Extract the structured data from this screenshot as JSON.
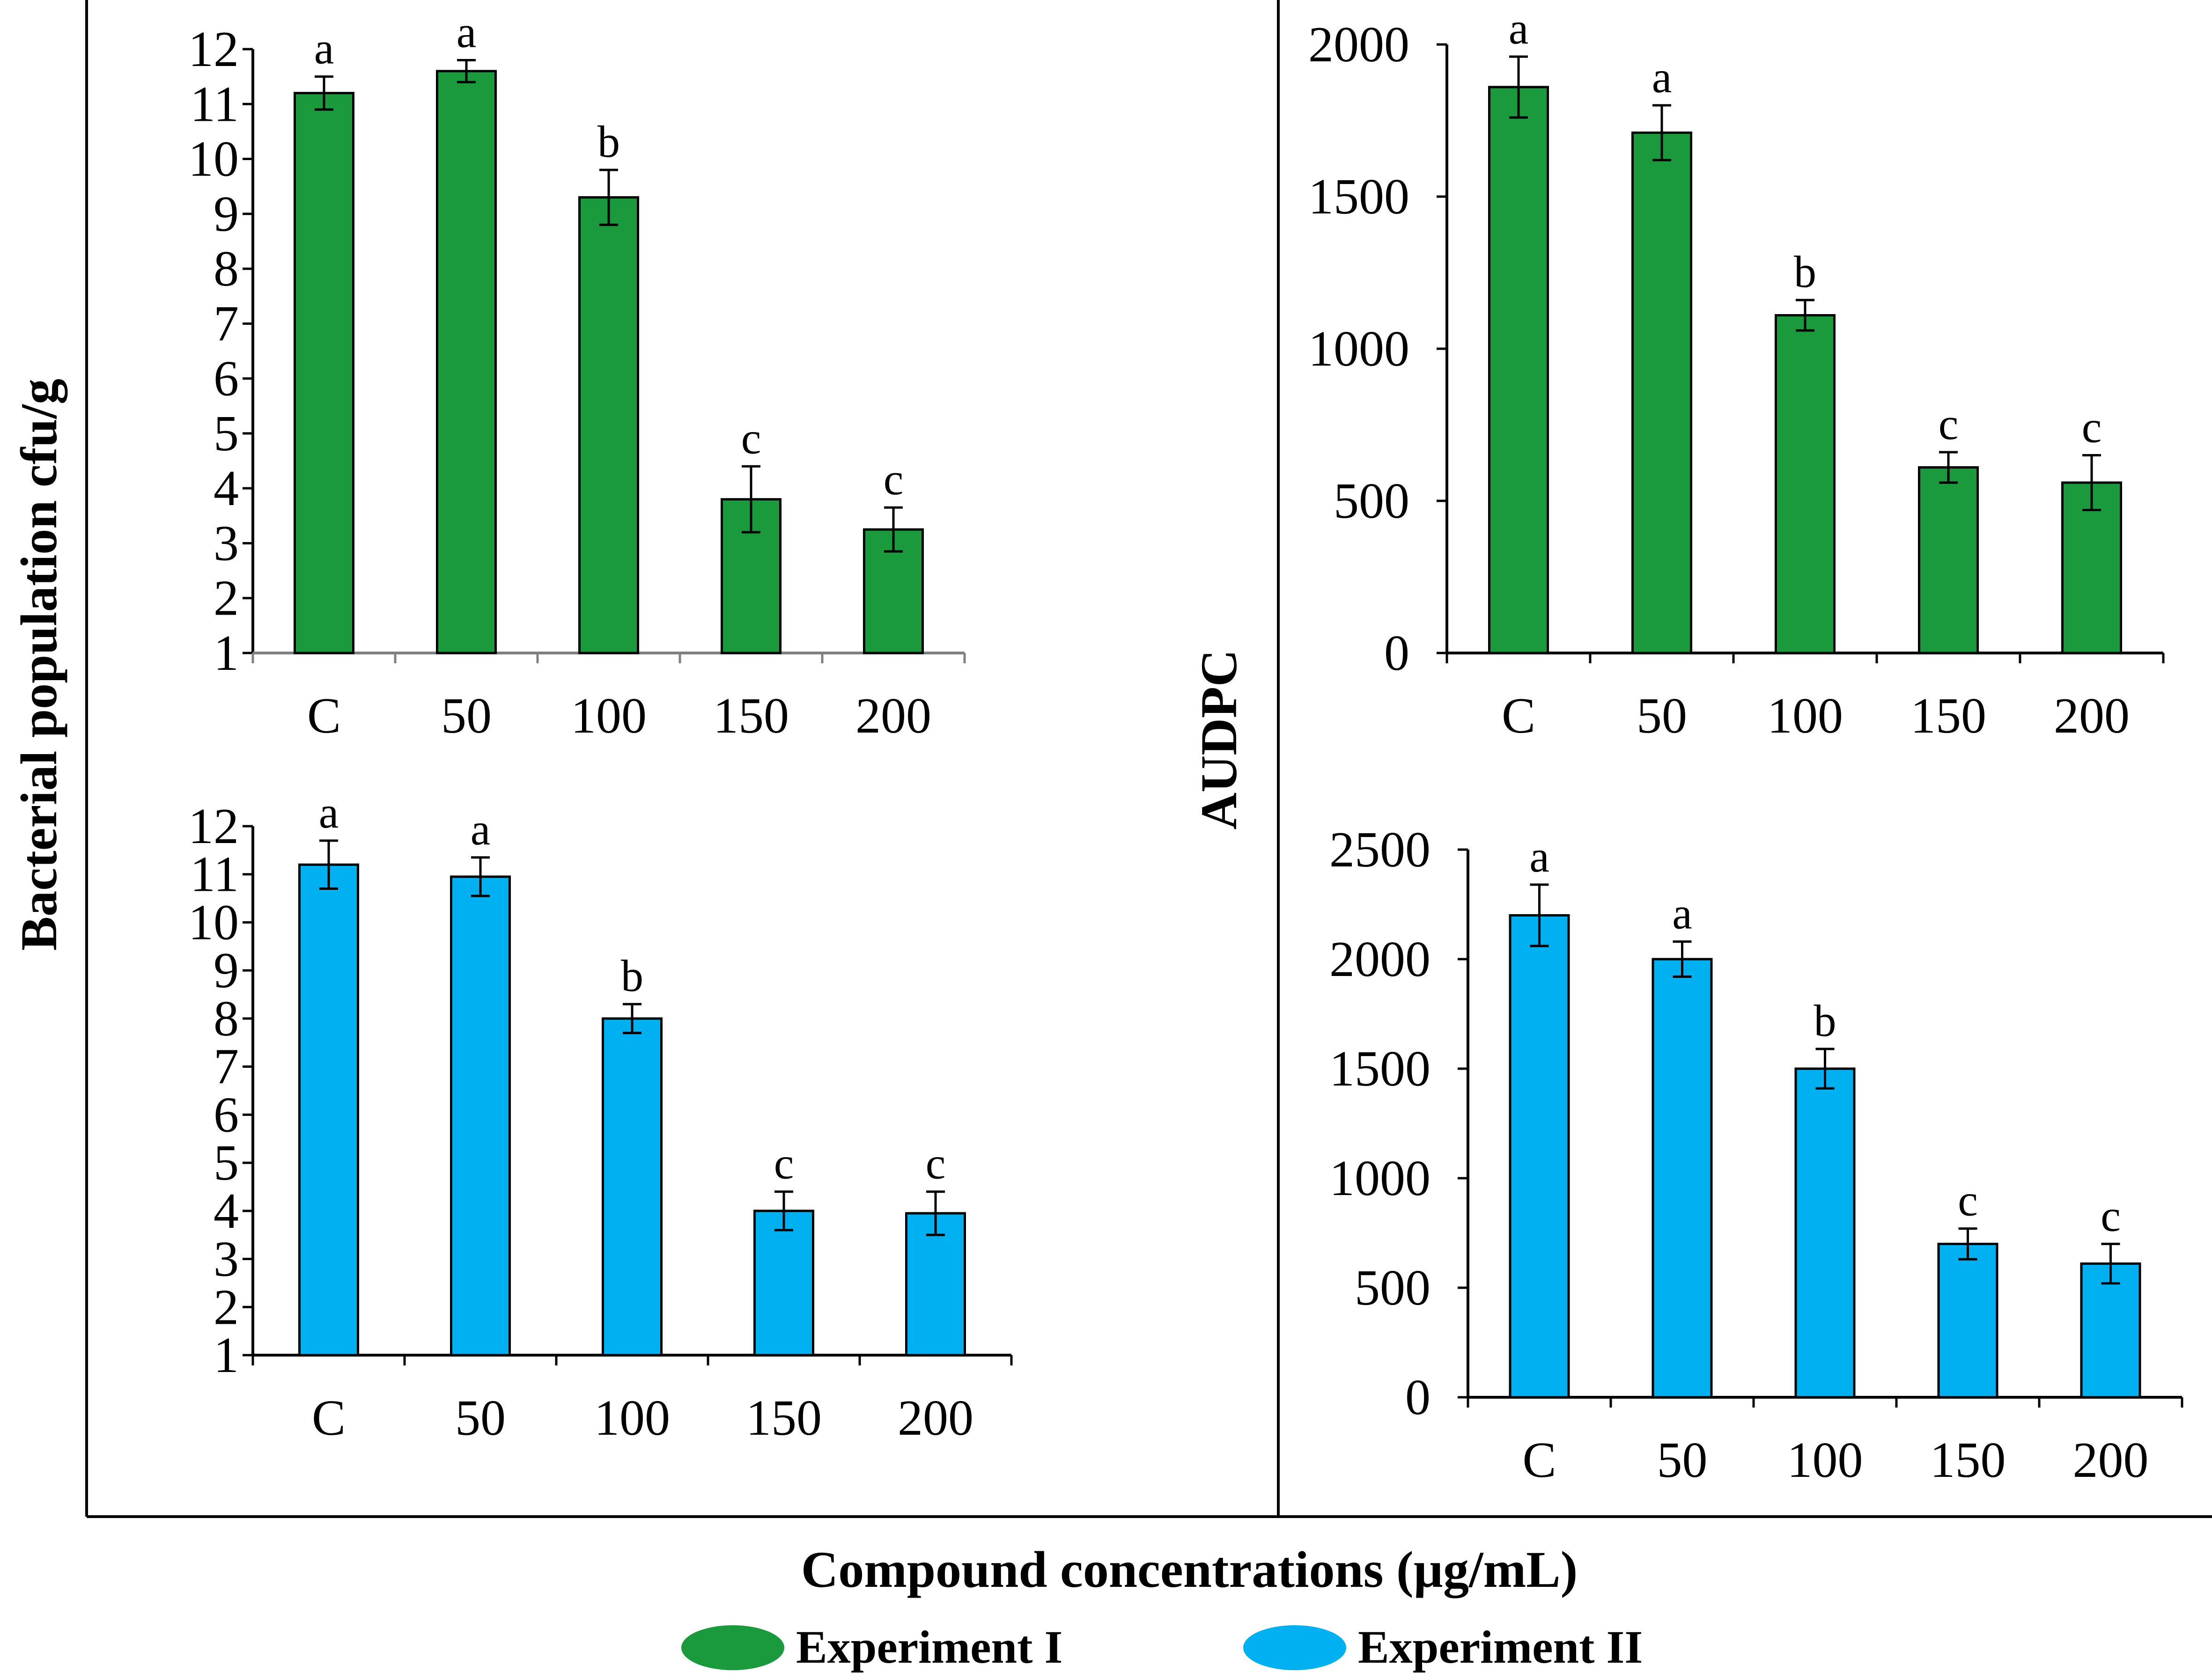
{
  "figure": {
    "y_label_left": "Bacterial population cfu/g",
    "y_label_right": "AUDPC",
    "x_label": "Compound concentrations (µg/mL)",
    "legend": [
      {
        "label": "Experiment I",
        "color": "#1a9a3c"
      },
      {
        "label": "Experiment II",
        "color": "#00b0f0"
      }
    ]
  },
  "chart_data": [
    {
      "id": "bacteria-exp1",
      "type": "bar",
      "series_name": "Experiment I",
      "color": "#1a9a3c",
      "categories": [
        "C",
        "50",
        "100",
        "150",
        "200"
      ],
      "values": [
        11.2,
        11.6,
        9.3,
        3.8,
        3.25
      ],
      "errors": [
        0.3,
        0.2,
        0.5,
        0.6,
        0.4
      ],
      "significance": [
        "a",
        "a",
        "b",
        "c",
        "c"
      ],
      "ylim": [
        1,
        12
      ],
      "yticks": [
        1,
        2,
        3,
        4,
        5,
        6,
        7,
        8,
        9,
        10,
        11,
        12
      ],
      "ylabel": "Bacterial population cfu/g"
    },
    {
      "id": "audpc-exp1",
      "type": "bar",
      "series_name": "Experiment I",
      "color": "#1a9a3c",
      "categories": [
        "C",
        "50",
        "100",
        "150",
        "200"
      ],
      "values": [
        1860,
        1710,
        1110,
        610,
        560
      ],
      "errors": [
        100,
        90,
        50,
        50,
        90
      ],
      "significance": [
        "a",
        "a",
        "b",
        "c",
        "c"
      ],
      "ylim": [
        0,
        2000
      ],
      "yticks": [
        0,
        500,
        1000,
        1500,
        2000
      ],
      "ylabel": "AUDPC"
    },
    {
      "id": "bacteria-exp2",
      "type": "bar",
      "series_name": "Experiment II",
      "color": "#00b0f0",
      "categories": [
        "C",
        "50",
        "100",
        "150",
        "200"
      ],
      "values": [
        11.2,
        10.95,
        8.0,
        4.0,
        3.95
      ],
      "errors": [
        0.5,
        0.4,
        0.3,
        0.4,
        0.45
      ],
      "significance": [
        "a",
        "a",
        "b",
        "c",
        "c"
      ],
      "ylim": [
        1,
        12
      ],
      "yticks": [
        1,
        2,
        3,
        4,
        5,
        6,
        7,
        8,
        9,
        10,
        11,
        12
      ],
      "ylabel": "Bacterial population cfu/g"
    },
    {
      "id": "audpc-exp2",
      "type": "bar",
      "series_name": "Experiment II",
      "color": "#00b0f0",
      "categories": [
        "C",
        "50",
        "100",
        "150",
        "200"
      ],
      "values": [
        2200,
        2000,
        1500,
        700,
        610
      ],
      "errors": [
        140,
        80,
        90,
        70,
        90
      ],
      "significance": [
        "a",
        "a",
        "b",
        "c",
        "c"
      ],
      "ylim": [
        0,
        2500
      ],
      "yticks": [
        0,
        500,
        1000,
        1500,
        2000,
        2500
      ],
      "ylabel": "AUDPC"
    }
  ]
}
